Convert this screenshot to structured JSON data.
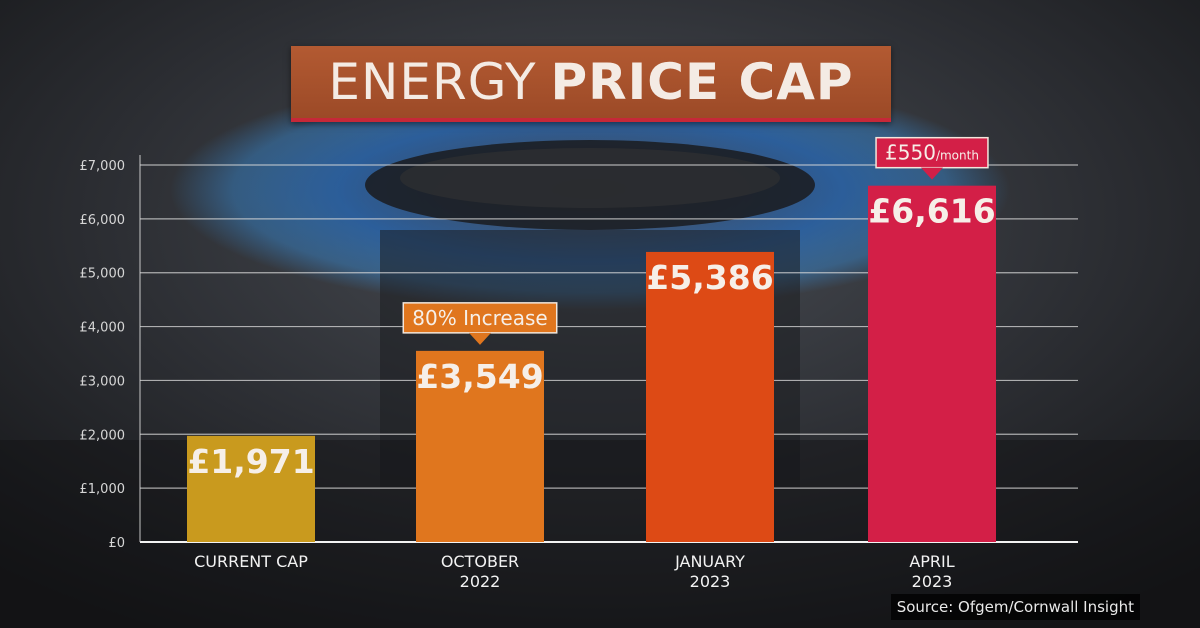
{
  "title": {
    "word1": "ENERGY",
    "word2": "PRICE CAP"
  },
  "source": "Source: Ofgem/Cornwall Insight",
  "chart_data": {
    "type": "bar",
    "categories": [
      "CURRENT CAP",
      "OCTOBER\n2022",
      "JANUARY\n2023",
      "APRIL\n2023"
    ],
    "values": [
      1971,
      3549,
      5386,
      6616
    ],
    "value_labels": [
      "£1,971",
      "£3,549",
      "£5,386",
      "£6,616"
    ],
    "bar_colors": [
      "#c99a1e",
      "#e0761e",
      "#dd4a15",
      "#d31f47"
    ],
    "ylim": [
      0,
      7000
    ],
    "yticks": [
      0,
      1000,
      2000,
      3000,
      4000,
      5000,
      6000,
      7000
    ],
    "ytick_labels": [
      "£0",
      "£1,000",
      "£2,000",
      "£3,000",
      "£4,000",
      "£5,000",
      "£6,000",
      "£7,000"
    ],
    "grid": true,
    "annotations": [
      {
        "bar_index": 1,
        "text": "80% Increase",
        "small": "",
        "bg": "#e0761e"
      },
      {
        "bar_index": 3,
        "text": "£550",
        "small": "/month",
        "bg": "#d31f47"
      }
    ]
  }
}
